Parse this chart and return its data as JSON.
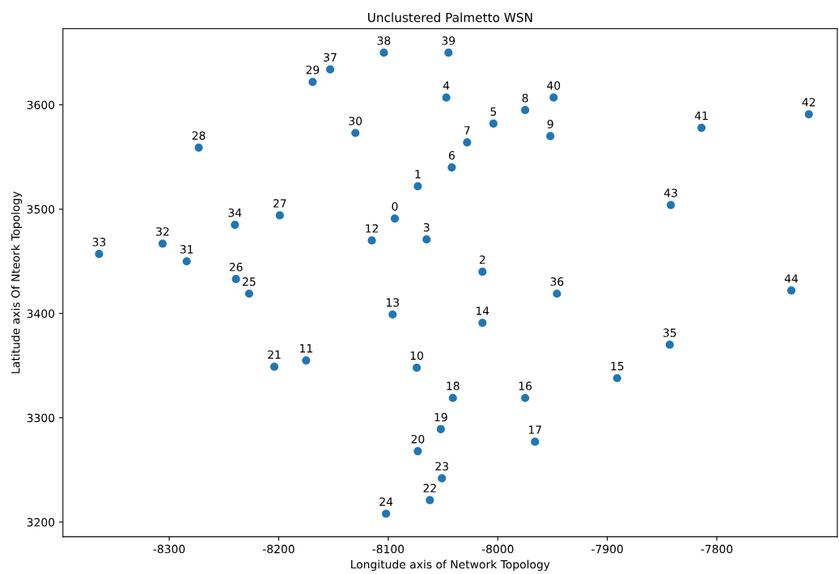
{
  "chart_data": {
    "type": "scatter",
    "title": "Unclustered Palmetto WSN",
    "xlabel": "Longitude axis of Network Topology",
    "ylabel": "Latitude axis Of Nteork Topology",
    "x": [
      -8094,
      -8073,
      -8014,
      -8065,
      -8047,
      -8004,
      -8042,
      -8028,
      -7975,
      -7952,
      -8074,
      -8175,
      -8115,
      -8096,
      -8014,
      -7891,
      -7975,
      -7966,
      -8041,
      -8052,
      -8073,
      -8204,
      -8062,
      -8051,
      -8102,
      -8227,
      -8239,
      -8199,
      -8273,
      -8169,
      -8130,
      -8284,
      -8306,
      -8364,
      -8240,
      -7843,
      -7946,
      -8153,
      -8104,
      -8045,
      -7949,
      -7814,
      -7716,
      -7842,
      -7732
    ],
    "series": [
      {
        "color": "#1f77b4",
        "values": [
          3491,
          3522,
          3440,
          3471,
          3607,
          3582,
          3540,
          3564,
          3595,
          3570,
          3348,
          3355,
          3470,
          3399,
          3391,
          3338,
          3319,
          3277,
          3319,
          3289,
          3268,
          3349,
          3221,
          3242,
          3208,
          3419,
          3433,
          3494,
          3559,
          3622,
          3573,
          3450,
          3467,
          3457,
          3485,
          3370,
          3419,
          3634,
          3650,
          3650,
          3607,
          3578,
          3591,
          3504,
          3422
        ]
      }
    ],
    "value_labels": [
      "0",
      "1",
      "2",
      "3",
      "4",
      "5",
      "6",
      "7",
      "8",
      "9",
      "10",
      "11",
      "12",
      "13",
      "14",
      "15",
      "16",
      "17",
      "18",
      "19",
      "20",
      "21",
      "22",
      "23",
      "24",
      "25",
      "26",
      "27",
      "28",
      "29",
      "30",
      "31",
      "32",
      "33",
      "34",
      "35",
      "36",
      "37",
      "38",
      "39",
      "40",
      "41",
      "42",
      "43",
      "44"
    ],
    "marker": "circle",
    "xlim": [
      -8397,
      -7690
    ],
    "xticks": [
      -8300,
      -8200,
      -8100,
      -8000,
      -7900,
      -7800
    ],
    "ylim": [
      3186,
      3673
    ],
    "yticks": [
      3200,
      3300,
      3400,
      3500,
      3600
    ]
  }
}
